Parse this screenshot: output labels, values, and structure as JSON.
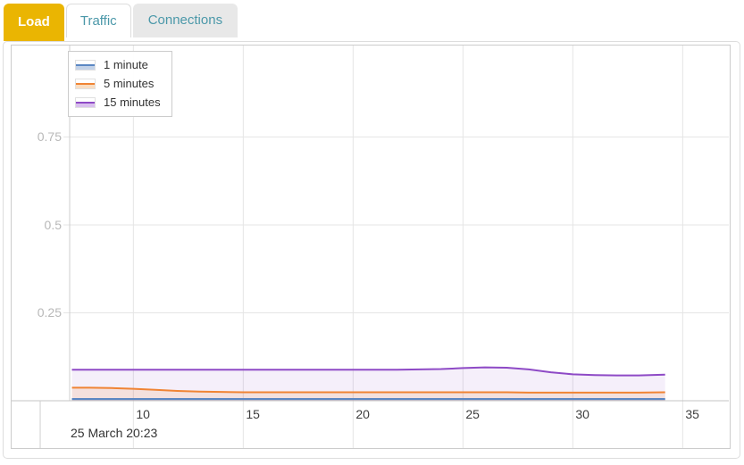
{
  "tabs": [
    {
      "label": "Load",
      "state": "active"
    },
    {
      "label": "Traffic",
      "state": "inactive"
    },
    {
      "label": "Connections",
      "state": "inactive"
    }
  ],
  "colors": {
    "active_tab_bg": "#eab502",
    "active_tab_text": "#ffffff",
    "inactive_tab_text": "#4b98a9",
    "panel_border": "#dddddd",
    "chart_border": "#cccccc",
    "gridline": "#e5e5e5",
    "axis_line": "#c4c4c4",
    "y_tick_text": "#b8b8b8",
    "x_tick_text": "#3d3d3d"
  },
  "chart_data": {
    "type": "area",
    "title": "",
    "xlabel": "",
    "ylabel": "",
    "legend_position": "top-left",
    "grid": true,
    "x_axis": {
      "ticks": [
        10,
        15,
        20,
        25,
        30,
        35
      ],
      "tick_labels": [
        "10",
        "15",
        "20",
        "25",
        "30",
        "35"
      ],
      "range": [
        7.1,
        37.1
      ],
      "context_label": "25 March 20:23"
    },
    "y_axis": {
      "ticks": [
        0.75,
        0.5,
        0.25
      ],
      "tick_labels": [
        "0.75",
        "0.5",
        "0.25"
      ],
      "range": [
        0,
        1.005
      ]
    },
    "legend": [
      "1 minute",
      "5 minutes",
      "15 minutes"
    ],
    "x": [
      7.2,
      8,
      9,
      10,
      11,
      12,
      13,
      14,
      15,
      16,
      17,
      18,
      19,
      20,
      21,
      22,
      23,
      24,
      25,
      26,
      27,
      28,
      29,
      30,
      31,
      32,
      33,
      34.2
    ],
    "series": [
      {
        "name": "1 minute",
        "color": "#5b87c3",
        "fill": "rgba(91,135,195,0.25)",
        "legend_fill": "#c3d2e8",
        "values": [
          0.005,
          0.005,
          0.005,
          0.005,
          0.005,
          0.005,
          0.005,
          0.005,
          0.005,
          0.005,
          0.005,
          0.005,
          0.005,
          0.005,
          0.005,
          0.005,
          0.005,
          0.005,
          0.005,
          0.005,
          0.005,
          0.005,
          0.005,
          0.005,
          0.005,
          0.005,
          0.005,
          0.005
        ]
      },
      {
        "name": "5 minutes",
        "color": "#f08434",
        "fill": "rgba(240,132,52,0.14)",
        "legend_fill": "#f9ddc2",
        "values": [
          0.037,
          0.037,
          0.036,
          0.034,
          0.031,
          0.028,
          0.026,
          0.025,
          0.024,
          0.024,
          0.024,
          0.024,
          0.024,
          0.024,
          0.024,
          0.024,
          0.024,
          0.024,
          0.024,
          0.024,
          0.024,
          0.023,
          0.023,
          0.023,
          0.023,
          0.023,
          0.023,
          0.024
        ]
      },
      {
        "name": "15 minutes",
        "color": "#8e4ac6",
        "fill": "rgba(142,74,198,0.09)",
        "legend_fill": "#d9bfee",
        "values": [
          0.088,
          0.088,
          0.088,
          0.088,
          0.088,
          0.088,
          0.088,
          0.088,
          0.088,
          0.088,
          0.088,
          0.088,
          0.088,
          0.088,
          0.088,
          0.088,
          0.089,
          0.09,
          0.093,
          0.095,
          0.094,
          0.089,
          0.081,
          0.075,
          0.073,
          0.072,
          0.072,
          0.074
        ]
      }
    ]
  }
}
